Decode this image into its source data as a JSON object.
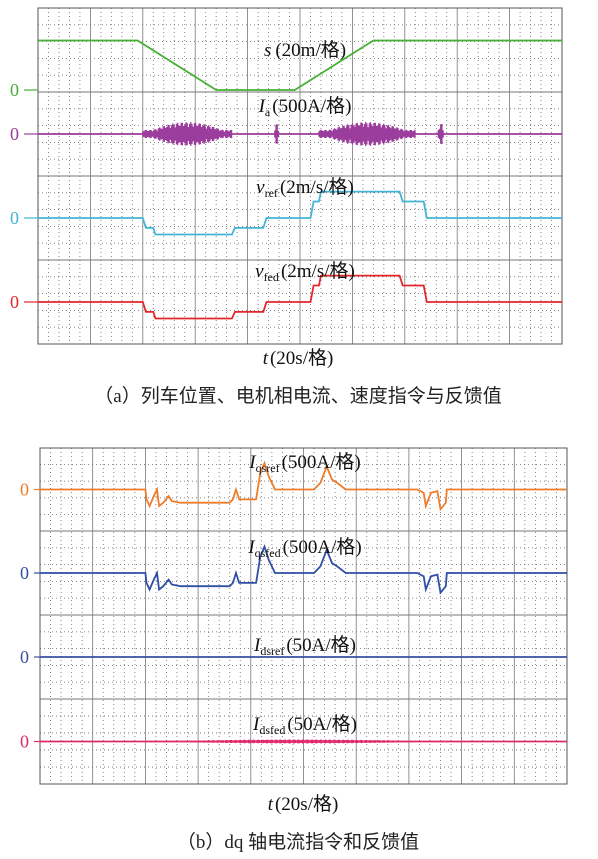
{
  "chart_data": [
    {
      "type": "line",
      "caption": "（a）列车位置、电机相电流、速度指令与反馈值",
      "xlabel_var": "t",
      "xlabel_unit": "(20s/格)",
      "zero_label": "0",
      "series": [
        {
          "name": "s",
          "sub": "",
          "unit": "(20m/格)",
          "color": "#46b035",
          "points": [
            [
              0,
              1.5
            ],
            [
              95,
              1.5
            ],
            [
              120,
              1.0
            ],
            [
              170,
              0.0
            ],
            [
              245,
              0.0
            ],
            [
              295,
              1.0
            ],
            [
              320,
              1.5
            ],
            [
              500,
              1.5
            ]
          ]
        },
        {
          "name": "I",
          "sub": "a",
          "unit": "(500A/格)",
          "color": "#9b3d9c",
          "points": [
            [
              0,
              0
            ],
            [
              500,
              0
            ]
          ],
          "bursts": [
            [
              100,
              185
            ],
            [
              226,
              230
            ],
            [
              268,
              360
            ],
            [
              382,
              387
            ]
          ]
        },
        {
          "name": "v",
          "sub": "ref",
          "unit": "(2m/s/格)",
          "color": "#42b4d6",
          "points": [
            [
              0,
              0
            ],
            [
              100,
              0
            ],
            [
              103,
              -0.3
            ],
            [
              110,
              -0.3
            ],
            [
              112,
              -0.5
            ],
            [
              185,
              -0.5
            ],
            [
              188,
              -0.3
            ],
            [
              215,
              -0.3
            ],
            [
              218,
              0.0
            ],
            [
              260,
              0.0
            ],
            [
              263,
              0.5
            ],
            [
              268,
              0.5
            ],
            [
              270,
              0.8
            ],
            [
              345,
              0.8
            ],
            [
              348,
              0.5
            ],
            [
              368,
              0.5
            ],
            [
              371,
              0.0
            ],
            [
              500,
              0.0
            ]
          ]
        },
        {
          "name": "v",
          "sub": "fed",
          "unit": "(2m/s/格)",
          "color": "#e3262a",
          "points": [
            [
              0,
              0
            ],
            [
              100,
              0
            ],
            [
              103,
              -0.3
            ],
            [
              110,
              -0.3
            ],
            [
              112,
              -0.5
            ],
            [
              185,
              -0.5
            ],
            [
              188,
              -0.3
            ],
            [
              215,
              -0.3
            ],
            [
              218,
              0.0
            ],
            [
              260,
              0.0
            ],
            [
              263,
              0.5
            ],
            [
              268,
              0.5
            ],
            [
              270,
              0.8
            ],
            [
              345,
              0.8
            ],
            [
              348,
              0.5
            ],
            [
              368,
              0.5
            ],
            [
              371,
              0.0
            ],
            [
              500,
              0.0
            ]
          ]
        }
      ]
    },
    {
      "type": "line",
      "caption": "（b）dq 轴电流指令和反馈值",
      "xlabel_var": "t",
      "xlabel_unit": "(20s/格)",
      "zero_label": "0",
      "series": [
        {
          "name": "I",
          "sub": "qsref",
          "unit": "(500A/格)",
          "color": "#ee7d2a",
          "points": [
            [
              0,
              0
            ],
            [
              100,
              0
            ],
            [
              101,
              -0.3
            ],
            [
              104,
              -0.5
            ],
            [
              108,
              -0.2
            ],
            [
              111,
              0
            ],
            [
              113,
              -0.5
            ],
            [
              117,
              -0.4
            ],
            [
              122,
              -0.2
            ],
            [
              125,
              -0.35
            ],
            [
              133,
              -0.4
            ],
            [
              180,
              -0.4
            ],
            [
              183,
              -0.3
            ],
            [
              186,
              0
            ],
            [
              189,
              -0.3
            ],
            [
              205,
              -0.3
            ],
            [
              209,
              0.5
            ],
            [
              213,
              0.8
            ],
            [
              217,
              0.4
            ],
            [
              223,
              0.0
            ],
            [
              260,
              0.0
            ],
            [
              266,
              0.2
            ],
            [
              272,
              0.7
            ],
            [
              277,
              0.3
            ],
            [
              282,
              0.2
            ],
            [
              290,
              0.0
            ],
            [
              358,
              0.0
            ],
            [
              364,
              -0.1
            ],
            [
              366,
              -0.5
            ],
            [
              371,
              -0.1
            ],
            [
              377,
              -0.05
            ],
            [
              380,
              -0.6
            ],
            [
              385,
              -0.4
            ],
            [
              386,
              0
            ],
            [
              500,
              0
            ]
          ]
        },
        {
          "name": "I",
          "sub": "qsfed",
          "unit": "(500A/格)",
          "color": "#2f4ea6",
          "points": [
            [
              0,
              0
            ],
            [
              100,
              0
            ],
            [
              101,
              -0.3
            ],
            [
              104,
              -0.5
            ],
            [
              108,
              -0.2
            ],
            [
              111,
              0
            ],
            [
              113,
              -0.5
            ],
            [
              117,
              -0.4
            ],
            [
              122,
              -0.2
            ],
            [
              125,
              -0.35
            ],
            [
              133,
              -0.4
            ],
            [
              180,
              -0.4
            ],
            [
              183,
              -0.3
            ],
            [
              186,
              0
            ],
            [
              189,
              -0.3
            ],
            [
              205,
              -0.3
            ],
            [
              209,
              0.5
            ],
            [
              213,
              0.8
            ],
            [
              217,
              0.4
            ],
            [
              223,
              0.0
            ],
            [
              260,
              0.0
            ],
            [
              266,
              0.2
            ],
            [
              272,
              0.7
            ],
            [
              277,
              0.3
            ],
            [
              282,
              0.2
            ],
            [
              290,
              0.0
            ],
            [
              358,
              0.0
            ],
            [
              364,
              -0.1
            ],
            [
              366,
              -0.5
            ],
            [
              371,
              -0.1
            ],
            [
              377,
              -0.05
            ],
            [
              380,
              -0.6
            ],
            [
              385,
              -0.4
            ],
            [
              386,
              0
            ],
            [
              500,
              0
            ]
          ]
        },
        {
          "name": "I",
          "sub": "dsref",
          "unit": "(50A/格)",
          "color": "#3a4fa0",
          "points": [
            [
              0,
              0
            ],
            [
              500,
              0
            ]
          ]
        },
        {
          "name": "I",
          "sub": "dsfed",
          "unit": "(50A/格)",
          "color": "#e02a6c",
          "points": [
            [
              0,
              0
            ],
            [
              500,
              0
            ]
          ],
          "bursts": [
            [
              100,
              390
            ]
          ]
        }
      ]
    }
  ]
}
